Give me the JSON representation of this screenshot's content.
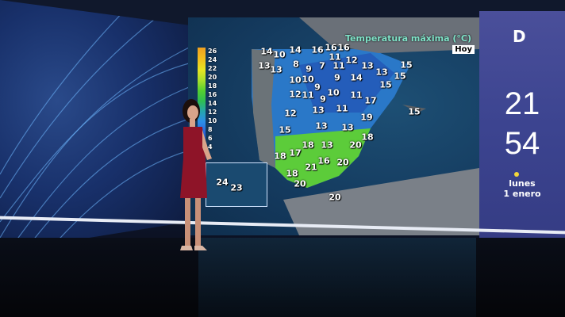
{
  "map": {
    "title": "Temperatura máxima (°C)",
    "day": "Hoy",
    "legend": {
      "values": [
        "26",
        "24",
        "22",
        "20",
        "18",
        "16",
        "14",
        "12",
        "10",
        "8",
        "6",
        "4"
      ],
      "colors": [
        "#f0a020",
        "#f2c21e",
        "#e6e623",
        "#a8e02c",
        "#54d030",
        "#2fbe52",
        "#26a6ad",
        "#2b8ee8",
        "#2d66d8",
        "#274bb0"
      ]
    },
    "temperatures": [
      "14",
      "10",
      "14",
      "16",
      "16",
      "16",
      "13",
      "13",
      "8",
      "9",
      "7",
      "11",
      "11",
      "12",
      "13",
      "15",
      "13",
      "15",
      "10",
      "10",
      "9",
      "14",
      "15",
      "9",
      "12",
      "11",
      "9",
      "10",
      "11",
      "17",
      "12",
      "13",
      "11",
      "19",
      "15",
      "15",
      "13",
      "13",
      "18",
      "13",
      "18",
      "20",
      "18",
      "17",
      "16",
      "20",
      "21",
      "18",
      "20",
      "20",
      "24",
      "23"
    ]
  },
  "channel": {
    "logo": "D",
    "clock_hours": "21",
    "clock_minutes": "54",
    "weekday": "lunes",
    "date": "1 enero",
    "accent": "#f4d63a"
  }
}
